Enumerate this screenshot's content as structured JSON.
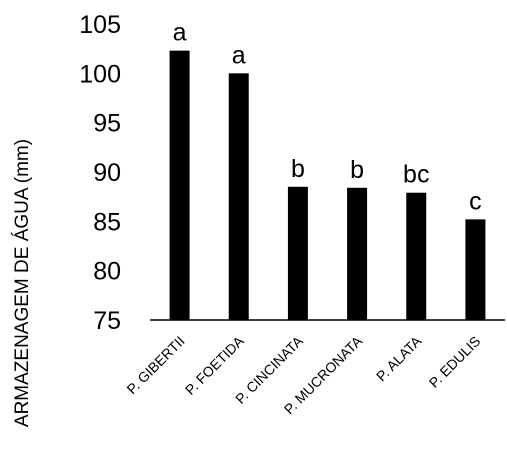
{
  "chart_data": {
    "type": "bar",
    "ylabel": "ARMAZENAGEM DE ÁGUA (mm)",
    "ylim": [
      75,
      105
    ],
    "yticks": [
      75,
      80,
      85,
      90,
      95,
      100,
      105
    ],
    "categories": [
      "P. GIBERTII",
      "P. FOETIDA",
      "P. CINCINATA",
      "P. MUCRONATA",
      "P. ALATA",
      "P. EDULIS"
    ],
    "values": [
      102.3,
      100.0,
      88.5,
      88.4,
      87.9,
      85.2
    ],
    "significance_letters": [
      "a",
      "a",
      "b",
      "b",
      "bc",
      "c"
    ],
    "bar_color": "#000000",
    "grid": false
  }
}
